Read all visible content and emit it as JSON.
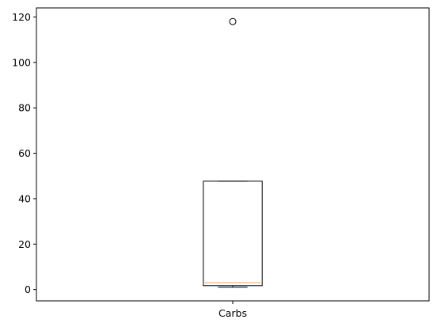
{
  "chart_data": {
    "type": "box",
    "title": "",
    "xlabel": "",
    "ylabel": "",
    "categories": [
      "Carbs"
    ],
    "ylim": [
      -5,
      124
    ],
    "yticks": [
      0,
      20,
      40,
      60,
      80,
      100,
      120
    ],
    "grid": false,
    "boxes": [
      {
        "name": "Carbs",
        "whisker_low": 1,
        "q1": 1.7,
        "median": 3,
        "q3": 47.7,
        "whisker_high": 47.7,
        "outliers": [
          118
        ]
      }
    ],
    "colors": {
      "box": "#000000",
      "median": "#f4a460",
      "outlier": "#000000"
    }
  }
}
